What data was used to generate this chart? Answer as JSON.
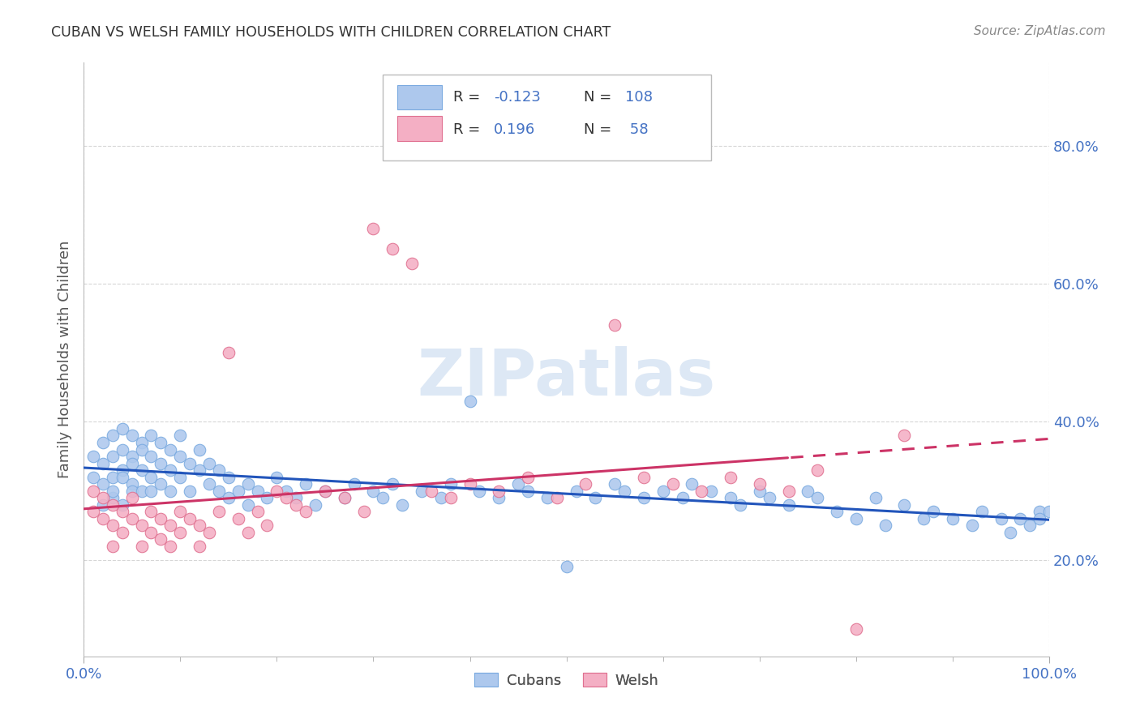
{
  "title": "CUBAN VS WELSH FAMILY HOUSEHOLDS WITH CHILDREN CORRELATION CHART",
  "source": "Source: ZipAtlas.com",
  "ylabel": "Family Households with Children",
  "background_color": "#ffffff",
  "grid_color": "#cccccc",
  "title_color": "#333333",
  "tick_color": "#4472c4",
  "axis_label_color": "#555555",
  "blue_fill": "#adc8ed",
  "blue_edge": "#7aaae0",
  "blue_line": "#2255bb",
  "pink_fill": "#f4afc4",
  "pink_edge": "#e07090",
  "pink_line": "#cc3366",
  "watermark": "ZIPatlas",
  "watermark_color": "#dde8f5",
  "xlim": [
    0.0,
    1.0
  ],
  "ylim": [
    0.06,
    0.92
  ],
  "yticks": [
    0.2,
    0.4,
    0.6,
    0.8
  ],
  "ytick_labels": [
    "20.0%",
    "40.0%",
    "60.0%",
    "80.0%"
  ],
  "xtick_left": "0.0%",
  "xtick_right": "100.0%",
  "cubans_R": -0.123,
  "cubans_N": 108,
  "welsh_R": 0.196,
  "welsh_N": 58,
  "dashed_split": 0.73,
  "cubans_x": [
    0.01,
    0.01,
    0.02,
    0.02,
    0.02,
    0.02,
    0.03,
    0.03,
    0.03,
    0.03,
    0.03,
    0.04,
    0.04,
    0.04,
    0.04,
    0.04,
    0.05,
    0.05,
    0.05,
    0.05,
    0.05,
    0.06,
    0.06,
    0.06,
    0.06,
    0.07,
    0.07,
    0.07,
    0.07,
    0.08,
    0.08,
    0.08,
    0.09,
    0.09,
    0.09,
    0.1,
    0.1,
    0.1,
    0.11,
    0.11,
    0.12,
    0.12,
    0.13,
    0.13,
    0.14,
    0.14,
    0.15,
    0.15,
    0.16,
    0.17,
    0.17,
    0.18,
    0.19,
    0.2,
    0.21,
    0.22,
    0.23,
    0.24,
    0.25,
    0.27,
    0.28,
    0.3,
    0.31,
    0.32,
    0.33,
    0.35,
    0.37,
    0.38,
    0.4,
    0.41,
    0.43,
    0.45,
    0.46,
    0.48,
    0.5,
    0.51,
    0.53,
    0.55,
    0.56,
    0.58,
    0.6,
    0.62,
    0.63,
    0.65,
    0.67,
    0.68,
    0.7,
    0.71,
    0.73,
    0.75,
    0.76,
    0.78,
    0.8,
    0.82,
    0.83,
    0.85,
    0.87,
    0.88,
    0.9,
    0.92,
    0.93,
    0.95,
    0.96,
    0.97,
    0.98,
    0.99,
    0.99,
    1.0
  ],
  "cubans_y": [
    0.32,
    0.35,
    0.28,
    0.31,
    0.34,
    0.37,
    0.29,
    0.32,
    0.35,
    0.38,
    0.3,
    0.33,
    0.36,
    0.39,
    0.32,
    0.28,
    0.35,
    0.38,
    0.31,
    0.34,
    0.3,
    0.37,
    0.33,
    0.3,
    0.36,
    0.32,
    0.35,
    0.38,
    0.3,
    0.34,
    0.37,
    0.31,
    0.33,
    0.36,
    0.3,
    0.35,
    0.38,
    0.32,
    0.34,
    0.3,
    0.33,
    0.36,
    0.31,
    0.34,
    0.3,
    0.33,
    0.29,
    0.32,
    0.3,
    0.31,
    0.28,
    0.3,
    0.29,
    0.32,
    0.3,
    0.29,
    0.31,
    0.28,
    0.3,
    0.29,
    0.31,
    0.3,
    0.29,
    0.31,
    0.28,
    0.3,
    0.29,
    0.31,
    0.43,
    0.3,
    0.29,
    0.31,
    0.3,
    0.29,
    0.19,
    0.3,
    0.29,
    0.31,
    0.3,
    0.29,
    0.3,
    0.29,
    0.31,
    0.3,
    0.29,
    0.28,
    0.3,
    0.29,
    0.28,
    0.3,
    0.29,
    0.27,
    0.26,
    0.29,
    0.25,
    0.28,
    0.26,
    0.27,
    0.26,
    0.25,
    0.27,
    0.26,
    0.24,
    0.26,
    0.25,
    0.27,
    0.26,
    0.27
  ],
  "welsh_x": [
    0.01,
    0.01,
    0.02,
    0.02,
    0.03,
    0.03,
    0.03,
    0.04,
    0.04,
    0.05,
    0.05,
    0.06,
    0.06,
    0.07,
    0.07,
    0.08,
    0.08,
    0.09,
    0.09,
    0.1,
    0.1,
    0.11,
    0.12,
    0.12,
    0.13,
    0.14,
    0.15,
    0.16,
    0.17,
    0.18,
    0.19,
    0.2,
    0.21,
    0.22,
    0.23,
    0.25,
    0.27,
    0.29,
    0.3,
    0.32,
    0.34,
    0.36,
    0.38,
    0.4,
    0.43,
    0.46,
    0.49,
    0.52,
    0.55,
    0.58,
    0.61,
    0.64,
    0.67,
    0.7,
    0.73,
    0.76,
    0.8,
    0.85
  ],
  "welsh_y": [
    0.3,
    0.27,
    0.29,
    0.26,
    0.28,
    0.25,
    0.22,
    0.27,
    0.24,
    0.29,
    0.26,
    0.25,
    0.22,
    0.27,
    0.24,
    0.26,
    0.23,
    0.25,
    0.22,
    0.27,
    0.24,
    0.26,
    0.25,
    0.22,
    0.24,
    0.27,
    0.5,
    0.26,
    0.24,
    0.27,
    0.25,
    0.3,
    0.29,
    0.28,
    0.27,
    0.3,
    0.29,
    0.27,
    0.68,
    0.65,
    0.63,
    0.3,
    0.29,
    0.31,
    0.3,
    0.32,
    0.29,
    0.31,
    0.54,
    0.32,
    0.31,
    0.3,
    0.32,
    0.31,
    0.3,
    0.33,
    0.1,
    0.38
  ]
}
